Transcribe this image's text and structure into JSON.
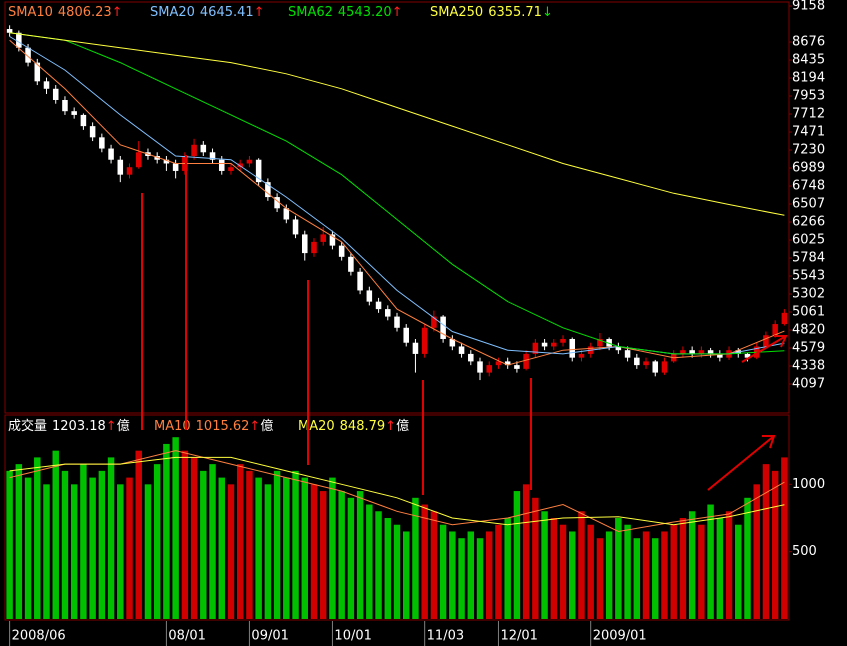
{
  "chart_data": [
    {
      "type": "candlestick",
      "xlim": [
        -0.5,
        84.5
      ],
      "ylim": [
        3709,
        9212
      ],
      "yticks": [
        9158,
        8676,
        8435,
        8194,
        7953,
        7712,
        7471,
        7230,
        6989,
        6748,
        6507,
        6266,
        6025,
        5784,
        5543,
        5302,
        5061,
        4820,
        4579,
        4338,
        4097
      ],
      "up_color": "#e00000",
      "down_color": "#ffffff",
      "candles": [
        [
          8850,
          8900,
          8750,
          8800
        ],
        [
          8800,
          8830,
          8550,
          8600
        ],
        [
          8600,
          8650,
          8350,
          8400
        ],
        [
          8400,
          8450,
          8100,
          8150
        ],
        [
          8150,
          8200,
          7980,
          8050
        ],
        [
          8050,
          8100,
          7850,
          7900
        ],
        [
          7900,
          7950,
          7700,
          7750
        ],
        [
          7750,
          7800,
          7650,
          7700
        ],
        [
          7700,
          7720,
          7500,
          7550
        ],
        [
          7550,
          7600,
          7350,
          7400
        ],
        [
          7400,
          7450,
          7200,
          7250
        ],
        [
          7250,
          7300,
          7050,
          7100
        ],
        [
          7100,
          7150,
          6800,
          6900
        ],
        [
          6900,
          7050,
          6850,
          7000
        ],
        [
          7000,
          7350,
          6980,
          7200
        ],
        [
          7200,
          7250,
          7100,
          7150
        ],
        [
          7150,
          7200,
          7050,
          7100
        ],
        [
          7100,
          7150,
          6950,
          7050
        ],
        [
          7050,
          7100,
          6850,
          6950
        ],
        [
          6950,
          7200,
          6900,
          7150
        ],
        [
          7150,
          7380,
          7100,
          7300
        ],
        [
          7300,
          7350,
          7150,
          7200
        ],
        [
          7200,
          7250,
          7050,
          7100
        ],
        [
          7100,
          7150,
          6900,
          6950
        ],
        [
          6950,
          7050,
          6900,
          7000
        ],
        [
          7000,
          7100,
          6950,
          7050
        ],
        [
          7050,
          7150,
          7000,
          7100
        ],
        [
          7100,
          7120,
          6750,
          6800
        ],
        [
          6800,
          6850,
          6550,
          6600
        ],
        [
          6600,
          6650,
          6400,
          6450
        ],
        [
          6450,
          6500,
          6250,
          6300
        ],
        [
          6300,
          6350,
          6050,
          6100
        ],
        [
          6100,
          6150,
          5750,
          5850
        ],
        [
          5850,
          6050,
          5800,
          6000
        ],
        [
          6000,
          6200,
          5950,
          6100
        ],
        [
          6100,
          6150,
          5900,
          5950
        ],
        [
          5950,
          6000,
          5750,
          5800
        ],
        [
          5800,
          5850,
          5550,
          5600
        ],
        [
          5600,
          5650,
          5300,
          5350
        ],
        [
          5350,
          5400,
          5150,
          5200
        ],
        [
          5200,
          5250,
          5050,
          5100
        ],
        [
          5100,
          5150,
          4950,
          5000
        ],
        [
          5000,
          5050,
          4800,
          4850
        ],
        [
          4850,
          4900,
          4600,
          4650
        ],
        [
          4650,
          4700,
          4250,
          4500
        ],
        [
          4500,
          4900,
          4450,
          4850
        ],
        [
          4850,
          5080,
          4800,
          5000
        ],
        [
          5000,
          5020,
          4650,
          4700
        ],
        [
          4700,
          4750,
          4550,
          4600
        ],
        [
          4600,
          4650,
          4450,
          4500
        ],
        [
          4500,
          4550,
          4350,
          4400
        ],
        [
          4400,
          4450,
          4150,
          4250
        ],
        [
          4250,
          4400,
          4200,
          4350
        ],
        [
          4350,
          4450,
          4300,
          4400
        ],
        [
          4400,
          4450,
          4300,
          4350
        ],
        [
          4350,
          4400,
          4250,
          4300
        ],
        [
          4300,
          4550,
          4280,
          4500
        ],
        [
          4500,
          4700,
          4450,
          4650
        ],
        [
          4650,
          4700,
          4550,
          4600
        ],
        [
          4600,
          4700,
          4550,
          4650
        ],
        [
          4650,
          4750,
          4600,
          4700
        ],
        [
          4700,
          4720,
          4400,
          4450
        ],
        [
          4450,
          4550,
          4400,
          4500
        ],
        [
          4500,
          4650,
          4450,
          4600
        ],
        [
          4600,
          4780,
          4550,
          4700
        ],
        [
          4700,
          4720,
          4550,
          4600
        ],
        [
          4600,
          4650,
          4500,
          4550
        ],
        [
          4550,
          4600,
          4400,
          4450
        ],
        [
          4450,
          4500,
          4300,
          4350
        ],
        [
          4350,
          4450,
          4300,
          4400
        ],
        [
          4400,
          4420,
          4200,
          4250
        ],
        [
          4250,
          4450,
          4220,
          4400
        ],
        [
          4400,
          4550,
          4380,
          4500
        ],
        [
          4500,
          4600,
          4450,
          4550
        ],
        [
          4550,
          4600,
          4450,
          4500
        ],
        [
          4500,
          4600,
          4450,
          4550
        ],
        [
          4550,
          4580,
          4450,
          4500
        ],
        [
          4500,
          4550,
          4400,
          4450
        ],
        [
          4450,
          4600,
          4420,
          4550
        ],
        [
          4550,
          4580,
          4450,
          4500
        ],
        [
          4500,
          4520,
          4400,
          4450
        ],
        [
          4450,
          4650,
          4430,
          4600
        ],
        [
          4600,
          4800,
          4580,
          4750
        ],
        [
          4750,
          4950,
          4720,
          4900
        ],
        [
          4900,
          5100,
          4880,
          5050
        ]
      ],
      "series": [
        {
          "name": "SMA10",
          "color": "#ff8040",
          "last": 4806.23,
          "arrow": "↑",
          "arrow_color": "#ff2020",
          "x": [
            0,
            6,
            12,
            18,
            24,
            30,
            36,
            42,
            48,
            54,
            60,
            66,
            72,
            78,
            84
          ],
          "values": [
            8700,
            8050,
            7300,
            7050,
            7050,
            6450,
            6000,
            5100,
            4700,
            4350,
            4550,
            4600,
            4450,
            4500,
            4806
          ]
        },
        {
          "name": "SMA20",
          "color": "#80c0ff",
          "last": 4645.41,
          "arrow": "↑",
          "arrow_color": "#ff2020",
          "x": [
            0,
            6,
            12,
            18,
            24,
            30,
            36,
            42,
            48,
            54,
            60,
            66,
            72,
            78,
            84
          ],
          "values": [
            8750,
            8300,
            7700,
            7150,
            7100,
            6600,
            6050,
            5350,
            4800,
            4550,
            4500,
            4600,
            4500,
            4500,
            4645
          ]
        },
        {
          "name": "SMA62",
          "color": "#00e000",
          "last": {
            "value": 4543.2,
            "label": "4543.20"
          },
          "arrow": "↑",
          "arrow_color": "#ff2020",
          "x": [
            0,
            6,
            12,
            18,
            24,
            30,
            36,
            42,
            48,
            54,
            60,
            66,
            72,
            78,
            84
          ],
          "values": [
            8800,
            8700,
            8400,
            8050,
            7700,
            7350,
            6900,
            6300,
            5700,
            5200,
            4850,
            4600,
            4500,
            4500,
            4543
          ]
        },
        {
          "name": "SMA250",
          "color": "#ffff40",
          "last": 6355.71,
          "arrow": "↓",
          "arrow_color": "#00e000",
          "x": [
            0,
            6,
            12,
            18,
            24,
            30,
            36,
            42,
            48,
            54,
            60,
            66,
            72,
            78,
            84
          ],
          "values": [
            8800,
            8700,
            8600,
            8500,
            8400,
            8250,
            8050,
            7800,
            7550,
            7300,
            7050,
            6850,
            6650,
            6500,
            6356
          ]
        }
      ]
    },
    {
      "type": "bar",
      "name": "成交量",
      "last": 1203.18,
      "arrow": "↑",
      "arrow_color": "#ff2020",
      "unit": "億",
      "up_color": "#d00000",
      "down_color": "#00c000",
      "xlim": [
        -0.5,
        84.5
      ],
      "ylim": [
        0,
        1500
      ],
      "yticks": [
        1000,
        500
      ],
      "xticks": [
        {
          "value": 0,
          "label": "2008/06"
        },
        {
          "value": 17,
          "label": "08/01"
        },
        {
          "value": 26,
          "label": "09/01"
        },
        {
          "value": 35,
          "label": "10/01"
        },
        {
          "value": 45,
          "label": "11/03"
        },
        {
          "value": 53,
          "label": "12/01"
        },
        {
          "value": 63,
          "label": "2009/01"
        }
      ],
      "values": [
        1100,
        1150,
        1050,
        1200,
        1000,
        1250,
        1100,
        1000,
        1150,
        1050,
        1100,
        1200,
        1000,
        1050,
        1250,
        1000,
        1150,
        1300,
        1350,
        1250,
        1200,
        1100,
        1150,
        1050,
        1000,
        1150,
        1100,
        1050,
        1000,
        1100,
        1050,
        1100,
        1050,
        1000,
        950,
        1050,
        950,
        900,
        950,
        850,
        800,
        750,
        700,
        650,
        900,
        850,
        800,
        700,
        650,
        600,
        650,
        600,
        650,
        700,
        750,
        950,
        1000,
        900,
        800,
        750,
        700,
        650,
        800,
        700,
        600,
        650,
        750,
        700,
        600,
        650,
        600,
        650,
        700,
        750,
        800,
        700,
        850,
        750,
        800,
        700,
        900,
        1000,
        1150,
        1100,
        1200
      ],
      "series": [
        {
          "name": "MA10",
          "color": "#ff8040",
          "last": 1015.62,
          "arrow": "↑",
          "arrow_color": "#ff2020",
          "unit": "億",
          "x": [
            0,
            6,
            12,
            18,
            24,
            30,
            36,
            42,
            48,
            54,
            60,
            66,
            72,
            78,
            84
          ],
          "values": [
            1050,
            1150,
            1150,
            1250,
            1150,
            1050,
            950,
            800,
            700,
            750,
            850,
            650,
            720,
            780,
            1016
          ]
        },
        {
          "name": "MA20",
          "color": "#ffff40",
          "last": 848.79,
          "arrow": "↑",
          "arrow_color": "#ff2020",
          "unit": "億",
          "x": [
            0,
            6,
            12,
            18,
            24,
            30,
            36,
            42,
            48,
            54,
            60,
            66,
            72,
            78,
            84
          ],
          "values": [
            1100,
            1150,
            1150,
            1200,
            1200,
            1100,
            1000,
            900,
            750,
            700,
            750,
            760,
            700,
            760,
            849
          ]
        }
      ]
    }
  ]
}
